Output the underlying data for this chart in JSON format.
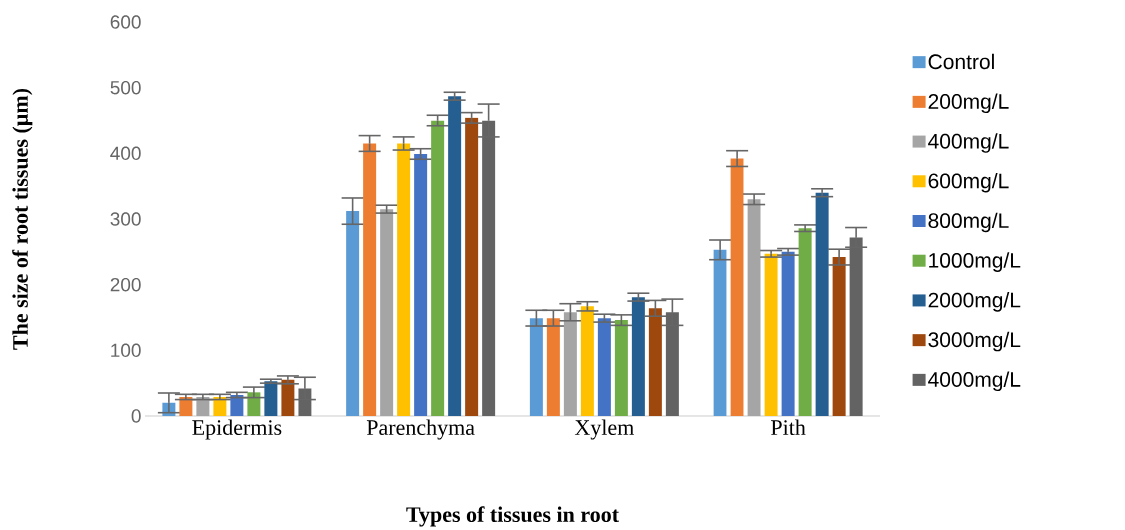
{
  "chart_data": {
    "type": "bar",
    "xlabel": "Types of tissues in root",
    "ylabel": "The size of root tissues (µm)",
    "categories": [
      "Epidermis",
      "Parenchyma",
      "Xylem",
      "Pith"
    ],
    "series": [
      {
        "name": "Control",
        "color": "#5b9bd5",
        "values": [
          20,
          312,
          149,
          253
        ],
        "errors": [
          15,
          20,
          12,
          15
        ]
      },
      {
        "name": "200mg/L",
        "color": "#ed7d31",
        "values": [
          29,
          415,
          149,
          392
        ],
        "errors": [
          4,
          12,
          12,
          12
        ]
      },
      {
        "name": "400mg/L",
        "color": "#a5a5a5",
        "values": [
          29,
          315,
          158,
          330
        ],
        "errors": [
          4,
          6,
          13,
          8
        ]
      },
      {
        "name": "600mg/L",
        "color": "#ffc000",
        "values": [
          29,
          415,
          167,
          247
        ],
        "errors": [
          4,
          10,
          7,
          5
        ]
      },
      {
        "name": "800mg/L",
        "color": "#4472c4",
        "values": [
          32,
          399,
          149,
          250
        ],
        "errors": [
          4,
          8,
          6,
          5
        ]
      },
      {
        "name": "1000mg/L",
        "color": "#70ad47",
        "values": [
          36,
          450,
          146,
          286
        ],
        "errors": [
          8,
          8,
          8,
          5
        ]
      },
      {
        "name": "2000mg/L",
        "color": "#255e91",
        "values": [
          53,
          487,
          181,
          340
        ],
        "errors": [
          3,
          6,
          6,
          6
        ]
      },
      {
        "name": "3000mg/L",
        "color": "#9e480e",
        "values": [
          55,
          454,
          164,
          242
        ],
        "errors": [
          6,
          8,
          12,
          12
        ]
      },
      {
        "name": "4000mg/L",
        "color": "#636363",
        "values": [
          42,
          450,
          158,
          272
        ],
        "errors": [
          17,
          25,
          20,
          15
        ]
      }
    ],
    "ylim": [
      0,
      600
    ],
    "yticks": [
      0,
      100,
      200,
      300,
      400,
      500,
      600
    ],
    "legend": "right",
    "grid": false
  }
}
